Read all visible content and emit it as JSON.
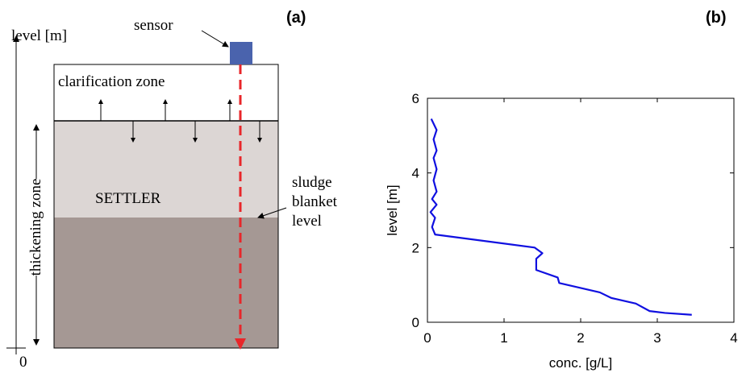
{
  "diagram": {
    "panel_label": "(a)",
    "axis_label": "level [m]",
    "axis_origin": "0",
    "sensor": "sensor",
    "clarification": "clarification zone",
    "settler": "SETTLER",
    "thickening": "thickening zone",
    "sludge_label": [
      "sludge",
      "blanket",
      "level"
    ]
  },
  "chart_data": {
    "type": "line",
    "panel_label": "(b)",
    "x_label": "conc. [g/L]",
    "y_label": "level [m]",
    "color": "#1010e0",
    "x": [
      0.05,
      0.12,
      0.08,
      0.12,
      0.08,
      0.12,
      0.08,
      0.12,
      0.06,
      0.12,
      0.04,
      0.1,
      0.06,
      0.1,
      1.4,
      1.5,
      1.42,
      1.42,
      1.7,
      1.72,
      2.25,
      2.4,
      2.72,
      2.9,
      3.1,
      3.45
    ],
    "values": [
      5.45,
      5.15,
      4.9,
      4.6,
      4.4,
      4.1,
      3.8,
      3.5,
      3.3,
      3.15,
      2.95,
      2.8,
      2.55,
      2.35,
      2.0,
      1.85,
      1.7,
      1.4,
      1.2,
      1.05,
      0.8,
      0.65,
      0.5,
      0.3,
      0.25,
      0.2
    ],
    "xlim": [
      0,
      4
    ],
    "ylim": [
      0,
      6
    ],
    "xticks": [
      0,
      1,
      2,
      3,
      4
    ],
    "yticks": [
      0,
      2,
      4,
      6
    ]
  }
}
